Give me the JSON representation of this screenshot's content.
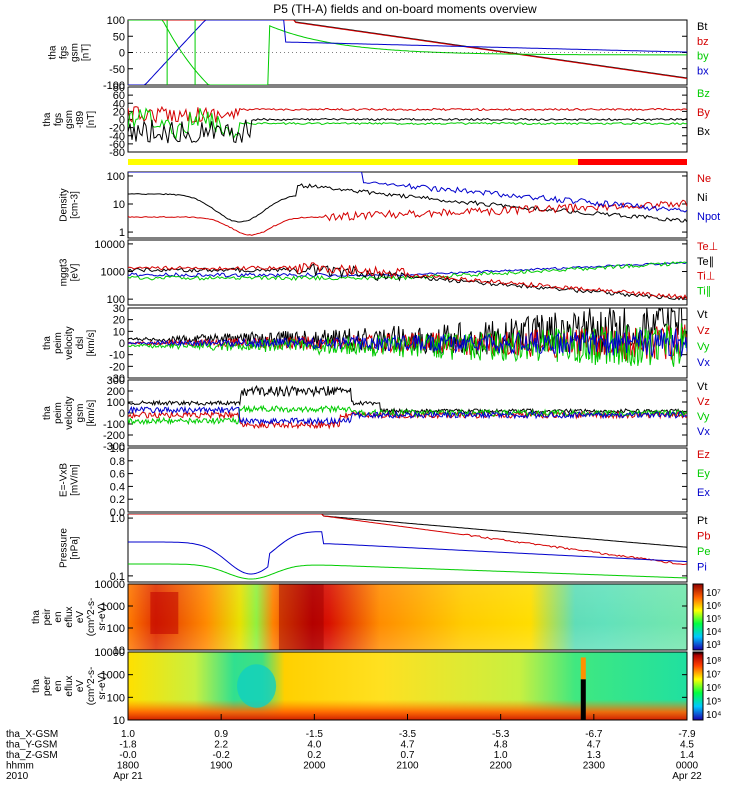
{
  "title": "P5 (TH-A) fields and on-board moments overview",
  "colors": {
    "black": "#000000",
    "red": "#d40000",
    "green": "#00cc00",
    "blue": "#0000cc",
    "yellow": "#ffff00",
    "brightred": "#ff0000"
  },
  "status_bar": {
    "segments": [
      {
        "color": "#ffff00",
        "from": "1800",
        "to": "2250"
      },
      {
        "color": "#ff0000",
        "from": "2250",
        "to": "0000"
      }
    ]
  },
  "chart_data": [
    {
      "id": "p1",
      "type": "line",
      "ylabel_lines": [
        "tha",
        "fgs",
        "gsm",
        "[nT]"
      ],
      "yticks": [
        "100",
        "50",
        "0",
        "-50",
        "-100"
      ],
      "yrange": [
        -100,
        100
      ],
      "legend": [
        "Bt",
        "bz",
        "by",
        "bx"
      ]
    },
    {
      "id": "p2",
      "type": "line",
      "ylabel_lines": [
        "tha",
        "fgs",
        "gsm",
        "-t89",
        "[nT]"
      ],
      "yticks": [
        "80",
        "60",
        "40",
        "20",
        "0",
        "-20",
        "-40",
        "-60",
        "-80"
      ],
      "yrange": [
        -80,
        80
      ],
      "legend": [
        "Bz",
        "By",
        "Bx"
      ]
    },
    {
      "id": "p3",
      "type": "line",
      "ylabel_lines": [
        "Density",
        "[cm-3]"
      ],
      "yticks": [
        "100",
        "10",
        "1"
      ],
      "yscale": "log",
      "legend": [
        "Ne",
        "Ni",
        "Npot"
      ]
    },
    {
      "id": "p4",
      "type": "line",
      "ylabel_lines": [
        "mggt3",
        "[eV]"
      ],
      "yticks": [
        "10000",
        "1000",
        "100"
      ],
      "yscale": "log",
      "legend": [
        "Te⊥",
        "Te∥",
        "Ti⊥",
        "Ti∥"
      ]
    },
    {
      "id": "p5",
      "type": "line",
      "ylabel_lines": [
        "tha",
        "peim",
        "velocity",
        "dsl",
        "[km/s]"
      ],
      "yticks": [
        "30",
        "20",
        "10",
        "0",
        "-10",
        "-20",
        "-30"
      ],
      "yrange": [
        -30,
        30
      ],
      "legend": [
        "Vt",
        "Vz",
        "Vy",
        "Vx"
      ]
    },
    {
      "id": "p6",
      "type": "line",
      "ylabel_lines": [
        "tha",
        "peim",
        "velocity",
        "gsm",
        "[km/s]"
      ],
      "yticks": [
        "300",
        "200",
        "100",
        "0",
        "-100",
        "-200",
        "-300"
      ],
      "yrange": [
        -300,
        300
      ],
      "legend": [
        "Vt",
        "Vz",
        "Vy",
        "Vx"
      ]
    },
    {
      "id": "p7",
      "type": "line",
      "ylabel_lines": [
        "E=-VxB",
        "[mV/m]"
      ],
      "yticks": [
        "1.0",
        "0.8",
        "0.6",
        "0.4",
        "0.2",
        "0.0"
      ],
      "yrange": [
        0,
        1
      ],
      "legend": [
        "Ez",
        "Ey",
        "Ex"
      ]
    },
    {
      "id": "p8",
      "type": "line",
      "ylabel_lines": [
        "Pressure",
        "[nPa]"
      ],
      "yticks": [
        "1.0",
        "0.1"
      ],
      "yscale": "log",
      "legend": [
        "Pt",
        "Pb",
        "Pe",
        "Pi"
      ]
    },
    {
      "id": "p9",
      "type": "heatmap",
      "ylabel_lines": [
        "tha",
        "peir",
        "en",
        "eflux",
        "eV",
        "(cm^2-s-",
        "sr-eV)"
      ],
      "yticks": [
        "10000",
        "1000",
        "100",
        "10"
      ],
      "colorbar_ticks": [
        "10⁷",
        "10⁶",
        "10⁵",
        "10⁴",
        "10³"
      ]
    },
    {
      "id": "p10",
      "type": "heatmap",
      "ylabel_lines": [
        "tha",
        "peer",
        "en",
        "eflux",
        "eV",
        "(cm^2-s-",
        "sr-eV)"
      ],
      "yticks": [
        "10000",
        "1000",
        "100",
        "10"
      ],
      "colorbar_ticks": [
        "10⁸",
        "10⁷",
        "10⁶",
        "10⁵",
        "10⁴"
      ]
    }
  ],
  "xaxis": {
    "rows": [
      {
        "label": "tha_X-GSM",
        "values": [
          "1.0",
          "0.9",
          "-1.5",
          "-3.5",
          "-5.3",
          "-6.7",
          "-7.9"
        ]
      },
      {
        "label": "tha_Y-GSM",
        "values": [
          "-1.8",
          "2.2",
          "4.0",
          "4.7",
          "4.8",
          "4.7",
          "4.5"
        ]
      },
      {
        "label": "tha_Z-GSM",
        "values": [
          "-0.0",
          "-0.2",
          "0.2",
          "0.7",
          "1.0",
          "1.3",
          "1.4"
        ]
      },
      {
        "label": "hhmm",
        "values": [
          "1800",
          "1900",
          "2000",
          "2100",
          "2200",
          "2300",
          "0000"
        ]
      },
      {
        "label": "2010",
        "values": [
          "Apr 21",
          "",
          "",
          "",
          "",
          "",
          "Apr 22"
        ]
      }
    ]
  }
}
